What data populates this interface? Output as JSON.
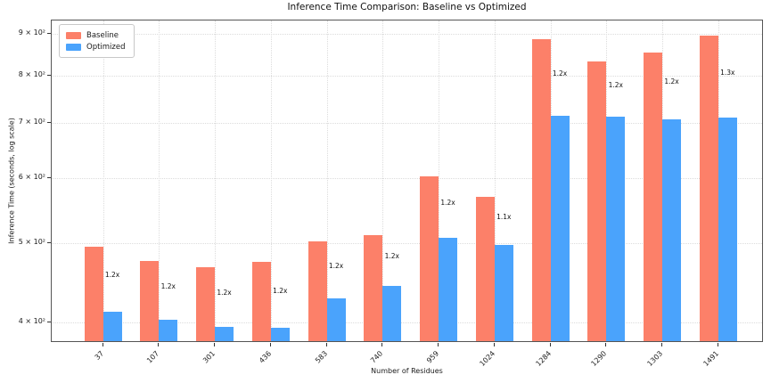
{
  "chart_data": {
    "type": "bar",
    "title": "Inference Time Comparison: Baseline vs Optimized",
    "xlabel": "Number of Residues",
    "ylabel": "Inference Time (seconds, log scale)",
    "yscale": "log",
    "ylim": [
      378,
      934
    ],
    "yticks": [
      {
        "value": 400,
        "label": "4 × 10²"
      },
      {
        "value": 500,
        "label": "5 × 10²"
      },
      {
        "value": 600,
        "label": "6 × 10²"
      },
      {
        "value": 700,
        "label": "7 × 10²"
      },
      {
        "value": 800,
        "label": "8 × 10²"
      },
      {
        "value": 900,
        "label": "9 × 10²"
      }
    ],
    "categories": [
      "37",
      "107",
      "301",
      "436",
      "583",
      "740",
      "959",
      "1024",
      "1284",
      "1290",
      "1303",
      "1491"
    ],
    "series": [
      {
        "name": "Baseline",
        "color": "#fc8069",
        "values": [
          495,
          476,
          468,
          474,
          503,
          512,
          603,
          570,
          886,
          833,
          854,
          895
        ]
      },
      {
        "name": "Optimized",
        "color": "#4aa3fc",
        "values": [
          413,
          403,
          395,
          394,
          428,
          444,
          508,
          497,
          715,
          713,
          708,
          711
        ]
      }
    ],
    "bar_labels": [
      "1.2x",
      "1.2x",
      "1.2x",
      "1.2x",
      "1.2x",
      "1.2x",
      "1.2x",
      "1.1x",
      "1.2x",
      "1.2x",
      "1.2x",
      "1.3x"
    ],
    "legend_position": "upper left",
    "grid_style": "dotted",
    "grid_color": "#dcdcdc"
  }
}
